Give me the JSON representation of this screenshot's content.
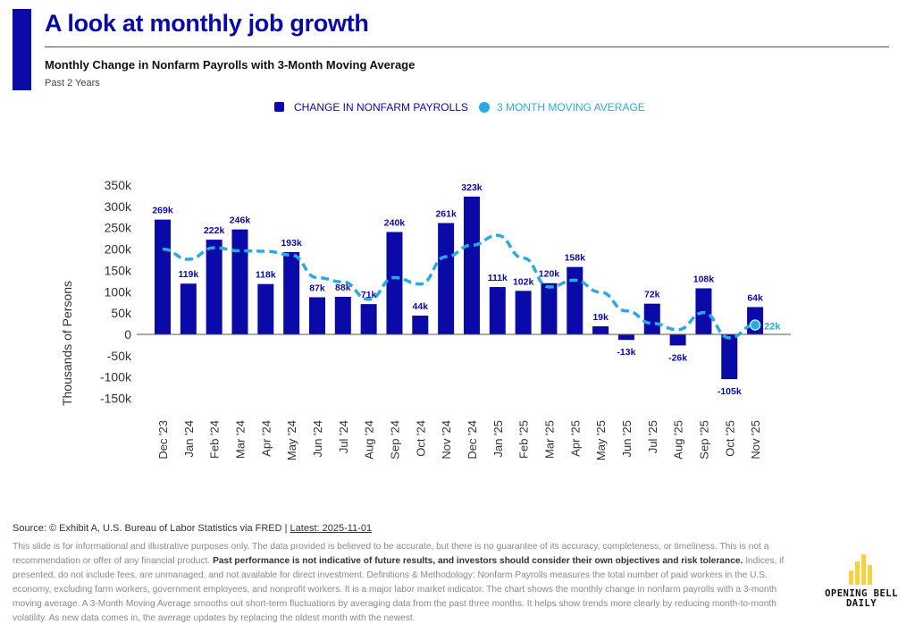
{
  "header": {
    "title": "A look at monthly job growth",
    "subtitle": "Monthly Change in Nonfarm Payrolls with 3-Month Moving Average",
    "period": "Past 2 Years"
  },
  "colors": {
    "bar": "#0a0aa8",
    "line": "#29abe2",
    "label": "#0a0aa8"
  },
  "chart_data": {
    "type": "bar",
    "title": "Monthly Change in Nonfarm Payrolls with 3-Month Moving Average",
    "ylabel": "Thousands of Persons",
    "xlabel": "",
    "ylim": [
      -150,
      350
    ],
    "yticks": [
      350,
      300,
      250,
      200,
      150,
      100,
      50,
      0,
      -50,
      -100,
      -150
    ],
    "ytick_labels": [
      "350k",
      "300k",
      "250k",
      "200k",
      "150k",
      "100k",
      "50k",
      "0",
      "-50k",
      "-100k",
      "-150k"
    ],
    "legend": [
      "CHANGE IN NONFARM PAYROLLS",
      "3 MONTH MOVING AVERAGE"
    ],
    "legend_position": "top-center",
    "categories": [
      "Dec '23",
      "Jan '24",
      "Feb '24",
      "Mar '24",
      "Apr '24",
      "May '24",
      "Jun '24",
      "Jul '24",
      "Aug '24",
      "Sep '24",
      "Oct '24",
      "Nov '24",
      "Dec '24",
      "Jan '25",
      "Feb '25",
      "Mar '25",
      "Apr '25",
      "May '25",
      "Jun '25",
      "Jul '25",
      "Aug '25",
      "Sep '25",
      "Oct '25",
      "Nov '25"
    ],
    "series": [
      {
        "name": "CHANGE IN NONFARM PAYROLLS",
        "type": "bar",
        "values": [
          269,
          119,
          222,
          246,
          118,
          193,
          87,
          88,
          71,
          240,
          44,
          261,
          323,
          111,
          102,
          120,
          158,
          19,
          -13,
          72,
          -26,
          108,
          -105,
          64
        ],
        "labels": [
          "269k",
          "119k",
          "222k",
          "246k",
          "118k",
          "193k",
          "87k",
          "88k",
          "71k",
          "240k",
          "44k",
          "261k",
          "323k",
          "111k",
          "102k",
          "120k",
          "158k",
          "19k",
          "-13k",
          "72k",
          "-26k",
          "108k",
          "-105k",
          "64k"
        ]
      },
      {
        "name": "3 MONTH MOVING AVERAGE",
        "type": "line",
        "values": [
          200,
          176,
          203,
          196,
          195,
          186,
          133,
          123,
          82,
          133,
          118,
          182,
          209,
          232,
          179,
          111,
          127,
          99,
          55,
          26,
          11,
          51,
          -8,
          22
        ],
        "last_label": "22k"
      }
    ]
  },
  "footer": {
    "source": "Source: © Exhibit A, U.S. Bureau of Labor Statistics via FRED | ",
    "latest": "Latest: 2025-11-01",
    "disclaimer_1": "This slide is for informational and illustrative purposes only. The data provided is believed to be accurate, but there is no guarantee of its accuracy, completeness, or timeliness. This is not a recommendation or offer of any financial product. ",
    "disclaimer_bold": "Past performance is not indicative of future results, and investors should consider their own objectives and risk tolerance.",
    "disclaimer_2": " Indices, if presented, do not include fees, are unmanaged, and not available for direct investment. Definitions & Methodology: Nonfarm Payrolls measures the total number of paid workers in the U.S. economy, excluding farm workers, government employees, and nonprofit workers. It is a major labor market indicator. The chart shows the monthly change in nonfarm payrolls with a 3-month moving average. A 3-Month Moving Average smooths out short-term fluctuations by averaging data from the past three months. It helps show trends more clearly by reducing month-to-month volatility. As new data comes in, the average updates by replacing the oldest month with the newest."
  },
  "logo": {
    "line1": "OPENING BELL",
    "line2": "DAILY"
  }
}
